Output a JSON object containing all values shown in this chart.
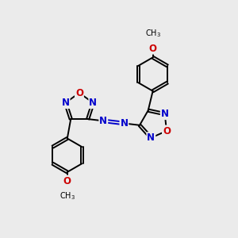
{
  "bg_color": "#ebebeb",
  "bond_color": "#000000",
  "N_color": "#0000cc",
  "O_color": "#cc0000",
  "C_color": "#000000",
  "line_width": 1.4,
  "font_size_atom": 8.5,
  "fig_width": 3.0,
  "fig_height": 3.0,
  "dpi": 100,
  "xlim": [
    0,
    10
  ],
  "ylim": [
    0,
    10
  ]
}
